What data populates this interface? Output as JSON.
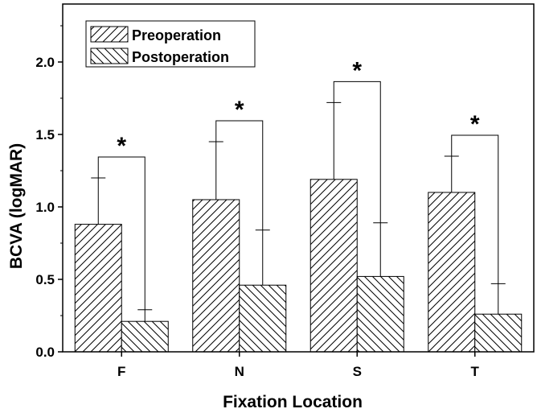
{
  "chart_data": {
    "type": "bar",
    "categories": [
      "F",
      "N",
      "S",
      "T"
    ],
    "series": [
      {
        "name": "Preoperation",
        "values": [
          0.88,
          1.05,
          1.19,
          1.1
        ],
        "errors": [
          0.32,
          0.4,
          0.53,
          0.25
        ],
        "pattern": "forward-hatch"
      },
      {
        "name": "Postoperation",
        "values": [
          0.21,
          0.46,
          0.52,
          0.26
        ],
        "errors": [
          0.08,
          0.38,
          0.37,
          0.21
        ],
        "pattern": "back-hatch"
      }
    ],
    "significance": [
      {
        "category": "F",
        "label": "*"
      },
      {
        "category": "N",
        "label": "*"
      },
      {
        "category": "S",
        "label": "*"
      },
      {
        "category": "T",
        "label": "*"
      }
    ],
    "xlabel": "Fixation Location",
    "ylabel": "BCVA (logMAR)",
    "ylim": [
      0,
      2.4
    ],
    "yticks": [
      "0.0",
      "0.5",
      "1.0",
      "1.5",
      "2.0"
    ],
    "ytick_values": [
      0.0,
      0.5,
      1.0,
      1.5,
      2.0
    ],
    "legend_position": "top-left",
    "grid": false
  }
}
